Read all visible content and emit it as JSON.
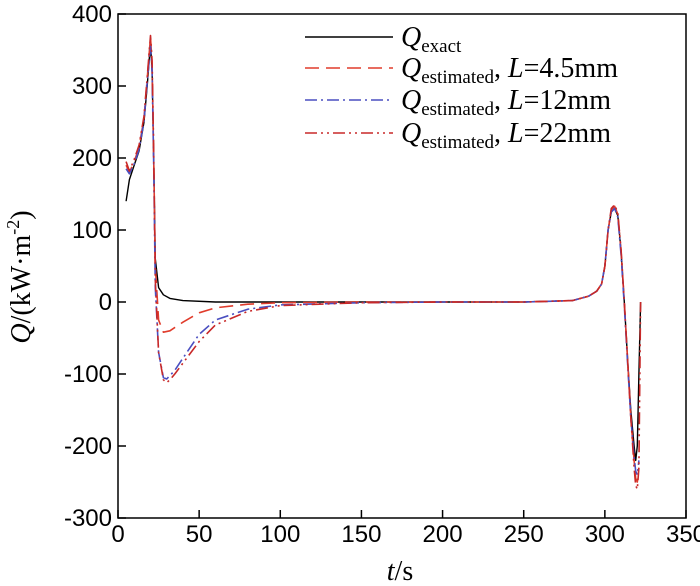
{
  "chart_data": {
    "type": "line",
    "xlabel": {
      "var": "t",
      "unit": "/s"
    },
    "ylabel": {
      "var": "Q",
      "unit": "/(kW·m",
      "sup": "-2",
      "close": ")"
    },
    "xlim": [
      0,
      350
    ],
    "ylim": [
      -300,
      400
    ],
    "xticks": [
      0,
      50,
      100,
      150,
      200,
      250,
      300,
      350
    ],
    "yticks": [
      -300,
      -200,
      -100,
      0,
      100,
      200,
      300,
      400
    ],
    "xtick_labels": [
      "0",
      "50",
      "100",
      "150",
      "200",
      "250",
      "300",
      "350"
    ],
    "ytick_labels": [
      "-300",
      "-200",
      "-100",
      "0",
      "100",
      "200",
      "300",
      "400"
    ],
    "grid": false,
    "legend_position": "top-right",
    "series": [
      {
        "label": {
          "var": "Q",
          "sub": "exact",
          "param": ""
        },
        "color": "#000000",
        "dash": "solid",
        "x": [
          5,
          7,
          10,
          13,
          16,
          18,
          20,
          21,
          22,
          23,
          25,
          28,
          32,
          40,
          60,
          100,
          150,
          200,
          250,
          280,
          290,
          295,
          298,
          300,
          302,
          304,
          306,
          308,
          310,
          312,
          314,
          316,
          318,
          319,
          320,
          321,
          322
        ],
        "y": [
          140,
          170,
          190,
          210,
          250,
          300,
          360,
          320,
          200,
          60,
          20,
          10,
          5,
          2,
          0,
          0,
          0,
          0,
          0,
          2,
          8,
          15,
          25,
          50,
          100,
          125,
          130,
          120,
          70,
          0,
          -80,
          -150,
          -200,
          -220,
          -200,
          -100,
          0
        ]
      },
      {
        "label": {
          "var": "Q",
          "sub": "estimated",
          "param": "4.5mm"
        },
        "color": "#e03c2c",
        "dash": "dashed",
        "x": [
          5,
          7,
          10,
          13,
          16,
          18,
          20,
          21,
          22,
          23,
          25,
          28,
          32,
          40,
          50,
          60,
          80,
          100,
          150,
          200,
          250,
          280,
          290,
          295,
          298,
          300,
          302,
          304,
          306,
          308,
          310,
          312,
          314,
          316,
          318,
          319,
          320,
          321
        ],
        "y": [
          190,
          180,
          195,
          215,
          255,
          310,
          368,
          330,
          200,
          50,
          -25,
          -42,
          -40,
          -28,
          -15,
          -8,
          -3,
          -1,
          0,
          0,
          0,
          2,
          8,
          15,
          25,
          50,
          100,
          128,
          133,
          122,
          70,
          0,
          -80,
          -160,
          -220,
          -245,
          -250,
          -230
        ]
      },
      {
        "label": {
          "var": "Q",
          "sub": "estimated",
          "param": "12mm"
        },
        "color": "#4a4ec0",
        "dash": "dashdot",
        "x": [
          5,
          7,
          10,
          13,
          16,
          18,
          20,
          21,
          22,
          23,
          25,
          28,
          30,
          35,
          40,
          50,
          60,
          80,
          100,
          150,
          200,
          250,
          280,
          290,
          295,
          298,
          300,
          302,
          304,
          306,
          308,
          310,
          312,
          314,
          316,
          318,
          319,
          320,
          321
        ],
        "y": [
          185,
          178,
          192,
          212,
          252,
          305,
          355,
          320,
          190,
          20,
          -70,
          -105,
          -107,
          -95,
          -78,
          -45,
          -25,
          -10,
          -4,
          -1,
          0,
          0,
          2,
          8,
          15,
          25,
          50,
          100,
          125,
          130,
          118,
          65,
          -5,
          -85,
          -160,
          -215,
          -235,
          -240,
          -220
        ]
      },
      {
        "label": {
          "var": "Q",
          "sub": "estimated",
          "param": "22mm"
        },
        "color": "#c82828",
        "dash": "dashdotdot",
        "x": [
          5,
          7,
          10,
          13,
          16,
          18,
          20,
          21,
          22,
          23,
          25,
          28,
          30,
          32,
          35,
          40,
          50,
          60,
          80,
          100,
          150,
          200,
          250,
          280,
          290,
          295,
          298,
          300,
          302,
          304,
          306,
          308,
          310,
          312,
          314,
          316,
          318,
          319,
          320,
          321,
          322
        ],
        "y": [
          195,
          182,
          198,
          218,
          258,
          312,
          370,
          335,
          210,
          30,
          -70,
          -108,
          -112,
          -108,
          -100,
          -85,
          -55,
          -32,
          -13,
          -5,
          -1,
          0,
          0,
          2,
          8,
          15,
          25,
          50,
          100,
          130,
          135,
          124,
          72,
          0,
          -80,
          -160,
          -230,
          -255,
          -260,
          -230,
          0
        ]
      }
    ]
  }
}
